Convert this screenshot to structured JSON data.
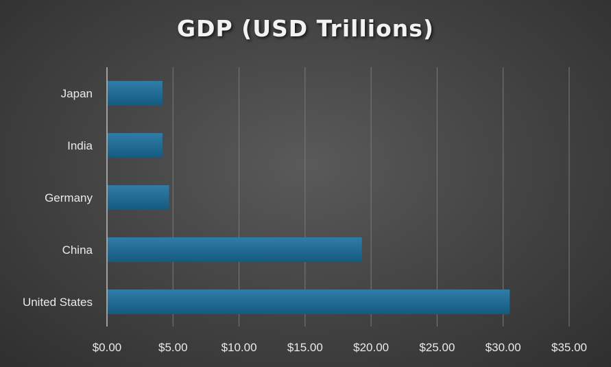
{
  "chart_data": {
    "type": "bar",
    "orientation": "horizontal",
    "title": "GDP (USD Trillions)",
    "xlabel": "",
    "ylabel": "",
    "categories": [
      "Japan",
      "India",
      "Germany",
      "China",
      "United States"
    ],
    "values": [
      4.2,
      4.2,
      4.7,
      19.3,
      30.5
    ],
    "xlim": [
      0,
      35
    ],
    "x_ticks": [
      0,
      5,
      10,
      15,
      20,
      25,
      30,
      35
    ],
    "x_tick_labels": [
      "$0.00",
      "$5.00",
      "$10.00",
      "$15.00",
      "$20.00",
      "$25.00",
      "$30.00",
      "$35.00"
    ],
    "grid": true,
    "legend": "none",
    "colors": {
      "bar_top": "#2f7ea8",
      "bar_bottom": "#155a80",
      "gridline": "#7a7a7a",
      "axis": "#bfbfbf"
    }
  }
}
